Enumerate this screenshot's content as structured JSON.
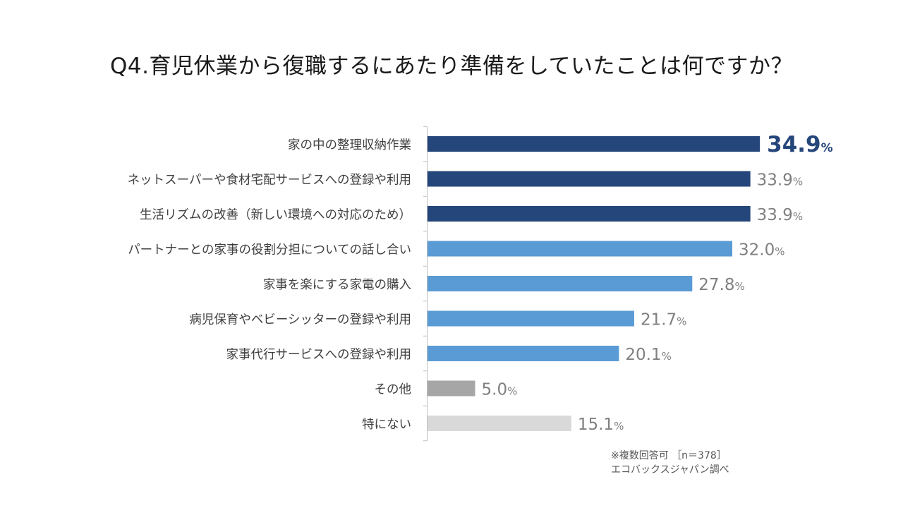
{
  "title": "Q4.育児休業から復職するにあたり準備をしていたことは何ですか？",
  "footnote": {
    "line1": "※複数回答可 ［n＝378］",
    "line2": "エコバックスジャパン調べ"
  },
  "chart_data": {
    "type": "bar",
    "orientation": "horizontal",
    "title": "Q4.育児休業から復職するにあたり準備をしていたことは何ですか？",
    "categories": [
      "家の中の整理収納作業",
      "ネットスーパーや食材宅配サービスへの登録や利用",
      "生活リズムの改善（新しい環境への対応のため）",
      "パートナーとの家事の役割分担についての話し合い",
      "家事を楽にする家電の購入",
      "病児保育やベビーシッターの登録や利用",
      "家事代行サービスへの登録や利用",
      "その他",
      "特にない"
    ],
    "values": [
      34.9,
      33.9,
      33.9,
      32.0,
      27.8,
      21.7,
      20.1,
      5.0,
      15.1
    ],
    "value_labels": [
      "34.9",
      "33.9",
      "33.9",
      "32.0",
      "27.8",
      "21.7",
      "20.1",
      "5.0",
      "15.1"
    ],
    "unit": "%",
    "bar_colors": [
      "#25467a",
      "#25467a",
      "#25467a",
      "#5b9bd5",
      "#5b9bd5",
      "#5b9bd5",
      "#5b9bd5",
      "#a6a6a6",
      "#d9d9d9"
    ],
    "label_colors": [
      "#25467a",
      "#808080",
      "#808080",
      "#808080",
      "#808080",
      "#808080",
      "#808080",
      "#808080",
      "#808080"
    ],
    "highlight_index": 0,
    "xlim": [
      0,
      40
    ],
    "xlabel": "",
    "ylabel": ""
  }
}
